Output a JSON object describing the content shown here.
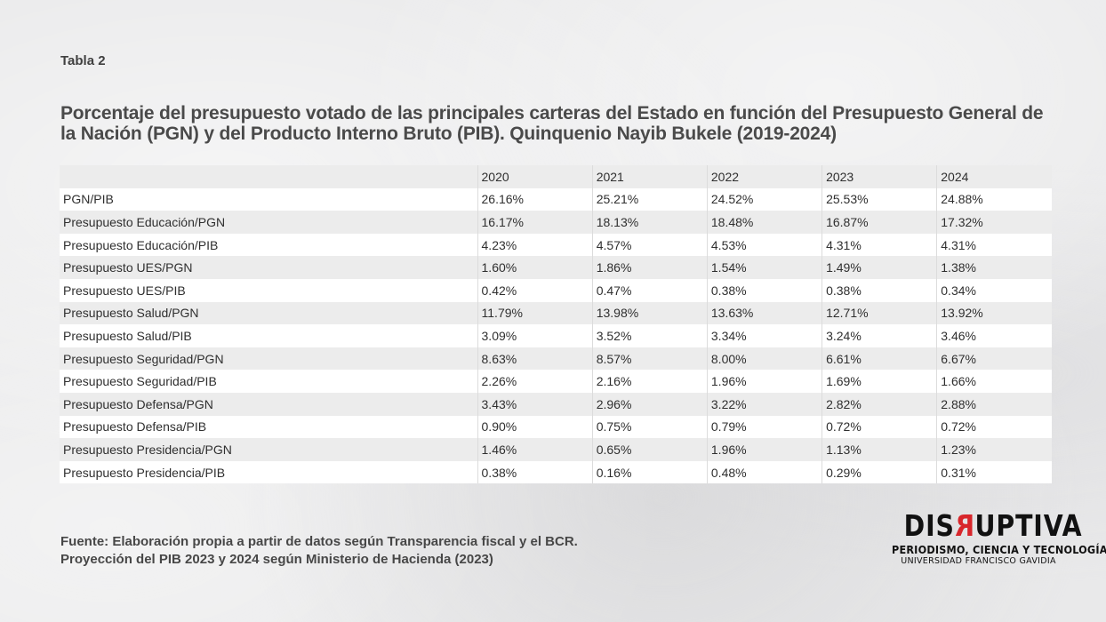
{
  "label": "Tabla 2",
  "title": "Porcentaje del presupuesto votado de las principales carteras del Estado en función del Presupuesto General de la Nación (PGN) y del Producto Interno Bruto (PIB). Quinquenio Nayib Bukele (2019-2024)",
  "table": {
    "header": [
      "",
      "2020",
      "2021",
      "2022",
      "2023",
      "2024"
    ],
    "rows": [
      [
        "PGN/PIB",
        "26.16%",
        "25.21%",
        "24.52%",
        "25.53%",
        "24.88%"
      ],
      [
        "Presupuesto Educación/PGN",
        "16.17%",
        "18.13%",
        "18.48%",
        "16.87%",
        "17.32%"
      ],
      [
        "Presupuesto Educación/PIB",
        "4.23%",
        "4.57%",
        "4.53%",
        "4.31%",
        "4.31%"
      ],
      [
        "Presupuesto UES/PGN",
        "1.60%",
        "1.86%",
        "1.54%",
        "1.49%",
        "1.38%"
      ],
      [
        "Presupuesto UES/PIB",
        "0.42%",
        "0.47%",
        "0.38%",
        "0.38%",
        "0.34%"
      ],
      [
        "Presupuesto Salud/PGN",
        "11.79%",
        "13.98%",
        "13.63%",
        "12.71%",
        "13.92%"
      ],
      [
        "Presupuesto Salud/PIB",
        "3.09%",
        "3.52%",
        "3.34%",
        "3.24%",
        "3.46%"
      ],
      [
        "Presupuesto Seguridad/PGN",
        "8.63%",
        "8.57%",
        "8.00%",
        "6.61%",
        "6.67%"
      ],
      [
        "Presupuesto Seguridad/PIB",
        "2.26%",
        "2.16%",
        "1.96%",
        "1.69%",
        "1.66%"
      ],
      [
        "Presupuesto Defensa/PGN",
        "3.43%",
        "2.96%",
        "3.22%",
        "2.82%",
        "2.88%"
      ],
      [
        "Presupuesto Defensa/PIB",
        "0.90%",
        "0.75%",
        "0.79%",
        "0.72%",
        "0.72%"
      ],
      [
        "Presupuesto Presidencia/PGN",
        "1.46%",
        "0.65%",
        "1.96%",
        "1.13%",
        "1.23%"
      ],
      [
        "Presupuesto Presidencia/PIB",
        "0.38%",
        "0.16%",
        "0.48%",
        "0.29%",
        "0.31%"
      ]
    ]
  },
  "source": {
    "line1": "Fuente: Elaboración propia a partir de datos según Transparencia fiscal y el BCR.",
    "line2": "Proyección del PIB 2023 y 2024 según Ministerio de Hacienda (2023)"
  },
  "logo": {
    "word_before": "DIS",
    "word_red": "R",
    "word_after": "UPTIVA",
    "tagline": "PERIODISMO, CIENCIA Y TECNOLOGÍA",
    "institution": "UNIVERSIDAD FRANCISCO GAVIDIA",
    "accent_color": "#d8262b"
  }
}
